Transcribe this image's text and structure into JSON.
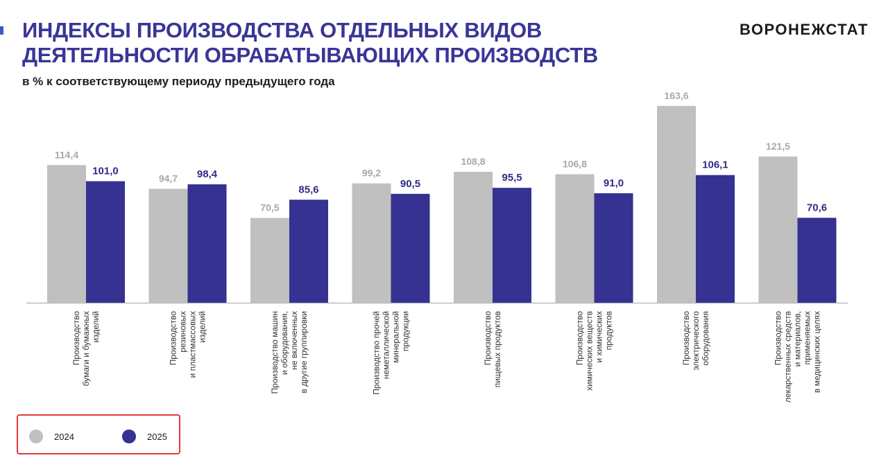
{
  "header": {
    "title_line1": "ИНДЕКСЫ ПРОИЗВОДСТВА ОТДЕЛЬНЫХ ВИДОВ",
    "title_line2": "ДЕЯТЕЛЬНОСТИ ОБРАБАТЫВАЮЩИХ ПРОИЗВОДСТВ",
    "subtitle": "в % к соответствующему периоду предыдущего года",
    "brand": "ВОРОНЕЖСТАТ"
  },
  "colors": {
    "title": "#3a3597",
    "accent": "#3b57c4",
    "series_2024": "#c0c0c0",
    "series_2025": "#353291",
    "label_2024": "#a8a8a8",
    "label_2025": "#2f2c85",
    "axis": "#bdbdbd",
    "category_text": "#333333",
    "legend_border": "#e0393a"
  },
  "chart_data": {
    "type": "bar",
    "categories": [
      [
        "Производство",
        "бумаги и бумажных",
        "изделий"
      ],
      [
        "Производство",
        "резиновых",
        "и пластмассовых",
        "изделий"
      ],
      [
        "Производство машин",
        "и оборудования,",
        "не включенных",
        "в другие группировки"
      ],
      [
        "Производство прочей",
        "неметаллической",
        "минеральной",
        "продукции"
      ],
      [
        "Производство",
        "пищевых продуктов"
      ],
      [
        "Производство",
        "химических веществ",
        "и химических",
        "продуктов"
      ],
      [
        "Производство",
        "электрического",
        "оборудования"
      ],
      [
        "Производство",
        "лекарственных средств",
        "и материалов,",
        "применяемых",
        "в медицинских  целях"
      ]
    ],
    "series": [
      {
        "name": "2024",
        "values": [
          114.4,
          94.7,
          70.5,
          99.2,
          108.8,
          106.8,
          163.6,
          121.5
        ],
        "labels": [
          "114,4",
          "94,7",
          "70,5",
          "99,2",
          "108,8",
          "106,8",
          "163,6",
          "121,5"
        ]
      },
      {
        "name": "2025",
        "values": [
          101.0,
          98.4,
          85.6,
          90.5,
          95.5,
          91.0,
          106.1,
          70.6
        ],
        "labels": [
          "101,0",
          "98,4",
          "85,6",
          "90,5",
          "95,5",
          "91,0",
          "106,1",
          "70,6"
        ]
      }
    ],
    "legend_position": "bottom-left",
    "grid": false
  }
}
